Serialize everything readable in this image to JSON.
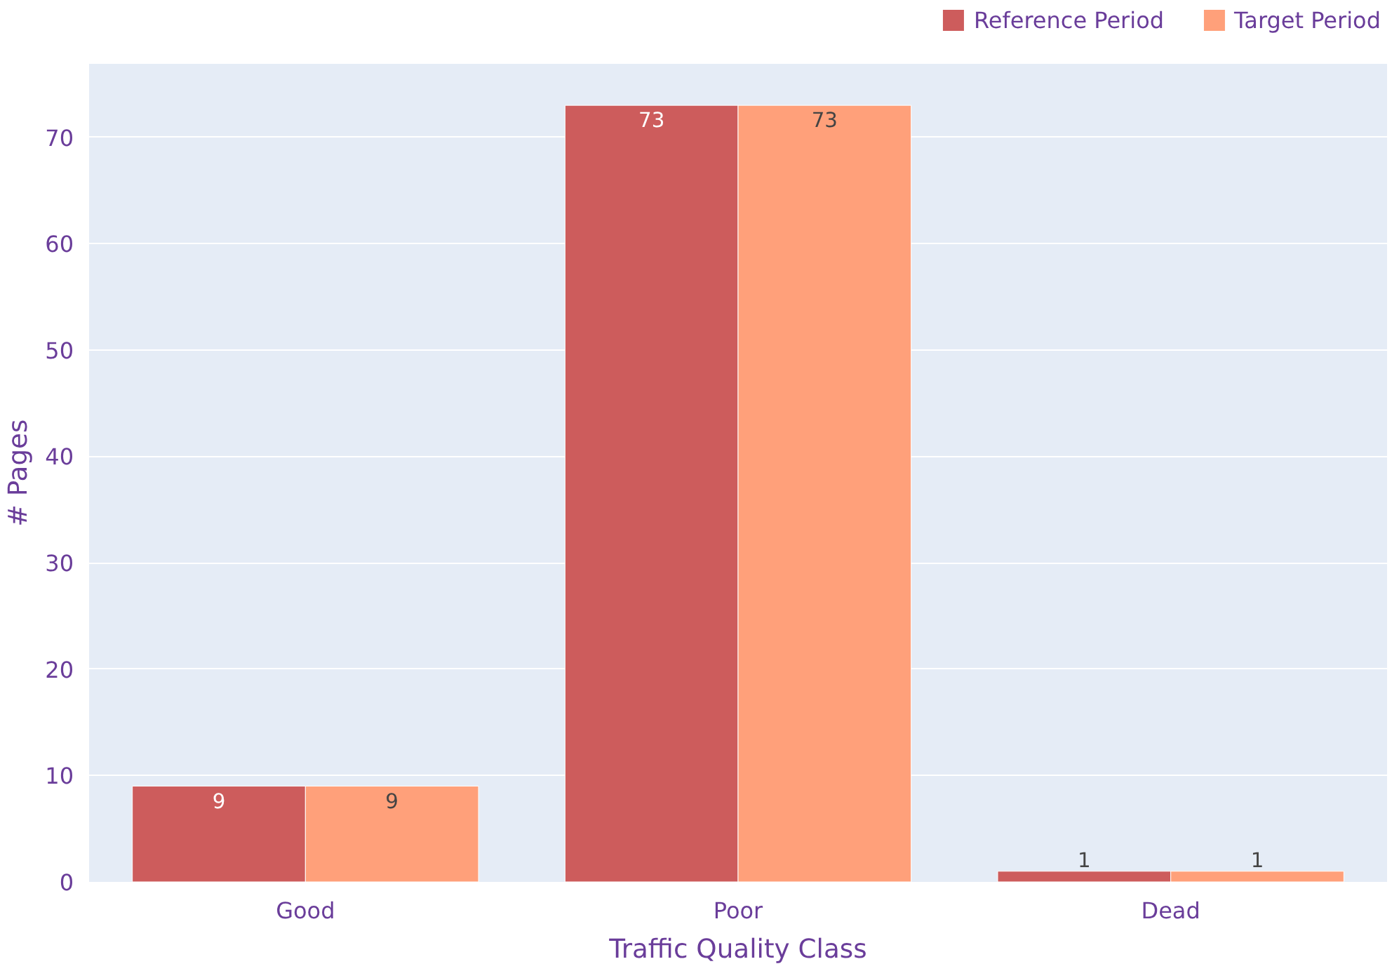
{
  "chart_data": {
    "type": "bar",
    "xlabel": "Traffic Quality Class",
    "ylabel": "# Pages",
    "categories": [
      "Good",
      "Poor",
      "Dead"
    ],
    "series": [
      {
        "name": "Reference Period",
        "color": "#cd5c5c",
        "values": [
          9,
          73,
          1
        ]
      },
      {
        "name": "Target Period",
        "color": "#ffa07a",
        "values": [
          9,
          73,
          1
        ]
      }
    ],
    "ylim": [
      0,
      76.9
    ],
    "yticks": [
      0,
      10,
      20,
      30,
      40,
      50,
      60,
      70
    ],
    "grid": "y",
    "legend": "top right",
    "data_labels": true
  }
}
